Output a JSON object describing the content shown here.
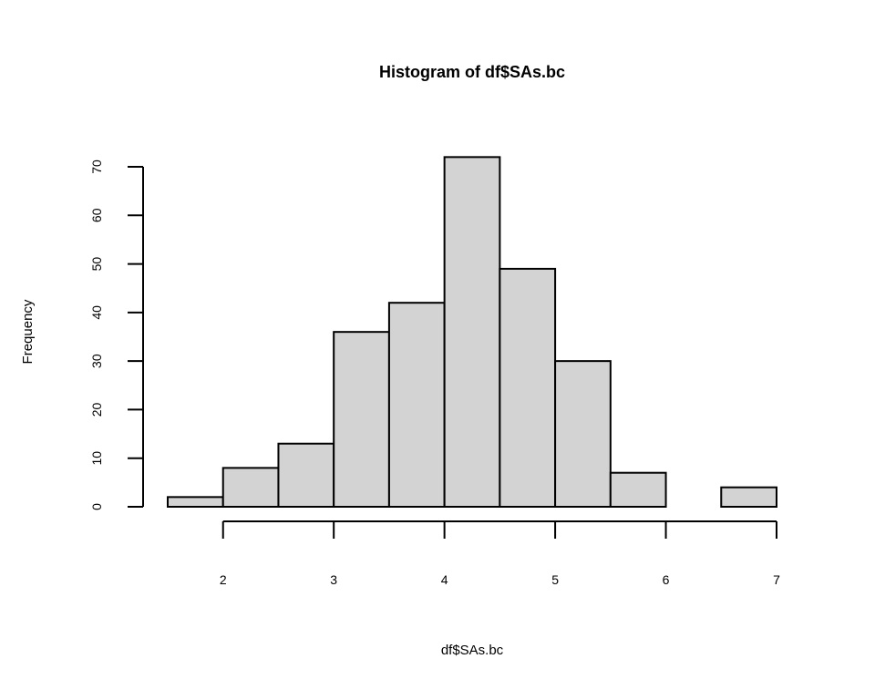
{
  "chart_data": {
    "type": "bar",
    "title": "Histogram of df$SAs.bc",
    "xlabel": "df$SAs.bc",
    "ylabel": "Frequency",
    "bins": [
      {
        "from": 1.5,
        "to": 2.0,
        "count": 2
      },
      {
        "from": 2.0,
        "to": 2.5,
        "count": 8
      },
      {
        "from": 2.5,
        "to": 3.0,
        "count": 13
      },
      {
        "from": 3.0,
        "to": 3.5,
        "count": 36
      },
      {
        "from": 3.5,
        "to": 4.0,
        "count": 42
      },
      {
        "from": 4.0,
        "to": 4.5,
        "count": 72
      },
      {
        "from": 4.5,
        "to": 5.0,
        "count": 49
      },
      {
        "from": 5.0,
        "to": 5.5,
        "count": 30
      },
      {
        "from": 5.5,
        "to": 6.0,
        "count": 7
      },
      {
        "from": 6.0,
        "to": 6.5,
        "count": 0
      },
      {
        "from": 6.5,
        "to": 7.0,
        "count": 4
      }
    ],
    "xticks": [
      2,
      3,
      4,
      5,
      6,
      7
    ],
    "xtick_labels": [
      "2",
      "3",
      "4",
      "5",
      "6",
      "7"
    ],
    "yticks": [
      0,
      10,
      20,
      30,
      40,
      50,
      60,
      70
    ],
    "ytick_labels": [
      "0",
      "10",
      "20",
      "30",
      "40",
      "50",
      "60",
      "70"
    ],
    "xlim": [
      1.5,
      7.0
    ],
    "ylim": [
      0,
      70
    ],
    "grid": false,
    "bar_color": "#d3d3d3",
    "edge_color": "#000000"
  }
}
